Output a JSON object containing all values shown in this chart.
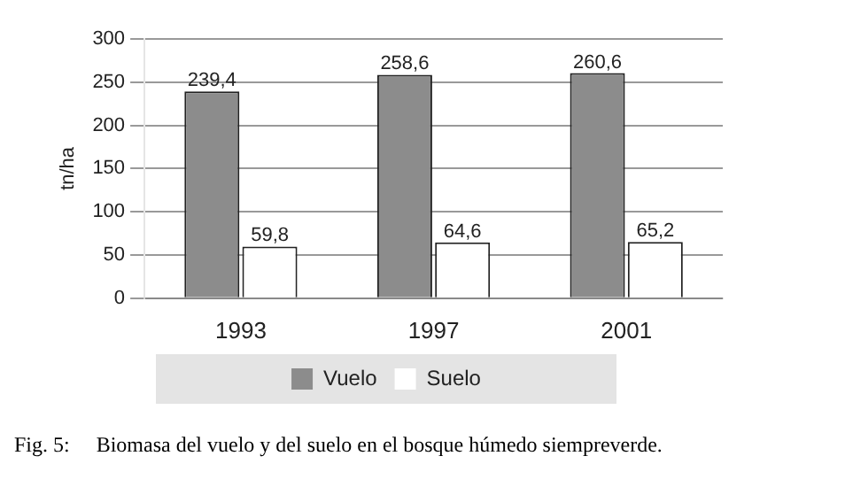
{
  "chart_data": {
    "type": "bar",
    "ylabel": "tn/ha",
    "categories": [
      "1993",
      "1997",
      "2001"
    ],
    "series": [
      {
        "name": "Vuelo",
        "color": "#8c8c8c",
        "values": [
          239.4,
          258.6,
          260.6
        ],
        "value_labels": [
          "239,4",
          "258,6",
          "260,6"
        ]
      },
      {
        "name": "Suelo",
        "color": "#ffffff",
        "values": [
          59.8,
          64.6,
          65.2
        ],
        "value_labels": [
          "59,8",
          "64,6",
          "65,2"
        ]
      }
    ],
    "ylim": [
      0,
      300
    ],
    "yticks": [
      0,
      50,
      100,
      150,
      200,
      250,
      300
    ],
    "grid": "y",
    "legend": "bottom",
    "annotations": [
      "Fig. 5:     Biomasa del vuelo y del suelo en el bosque húmedo siempreverde."
    ]
  }
}
